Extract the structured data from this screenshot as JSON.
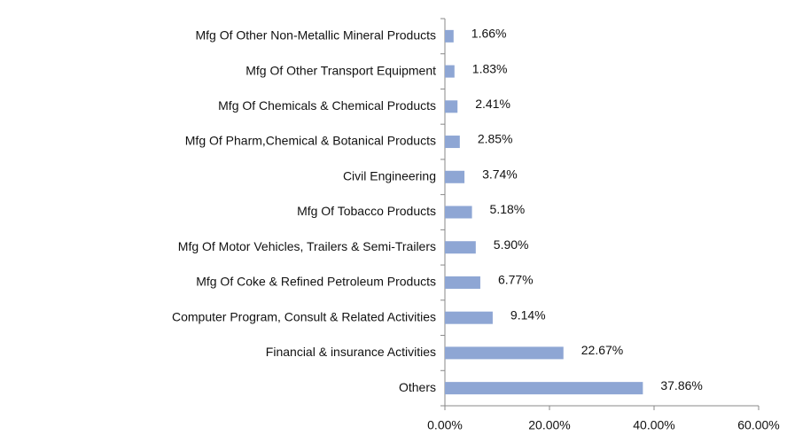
{
  "chart_data": {
    "type": "bar",
    "orientation": "horizontal",
    "categories": [
      "Mfg Of Other Non-Metallic Mineral Products",
      "Mfg Of Other Transport Equipment",
      "Mfg Of Chemicals & Chemical Products",
      "Mfg Of Pharm,Chemical & Botanical Products",
      "Civil Engineering",
      "Mfg Of Tobacco Products",
      "Mfg Of Motor Vehicles, Trailers & Semi-Trailers",
      "Mfg Of Coke & Refined Petroleum Products",
      "Computer Program, Consult & Related Activities",
      "Financial & insurance Activities",
      "Others"
    ],
    "values": [
      1.66,
      1.83,
      2.41,
      2.85,
      3.74,
      5.18,
      5.9,
      6.77,
      9.14,
      22.67,
      37.86
    ],
    "value_labels": [
      "1.66%",
      "1.83%",
      "2.41%",
      "2.85%",
      "3.74%",
      "5.18%",
      "5.90%",
      "6.77%",
      "9.14%",
      "22.67%",
      "37.86%"
    ],
    "color": "#8ea6d4",
    "xlim": [
      0,
      60
    ],
    "xticks": [
      {
        "value": 0,
        "label": "0.00%"
      },
      {
        "value": 20,
        "label": "20.00%"
      },
      {
        "value": 40,
        "label": "40.00%"
      },
      {
        "value": 60,
        "label": "60.00%"
      }
    ]
  }
}
